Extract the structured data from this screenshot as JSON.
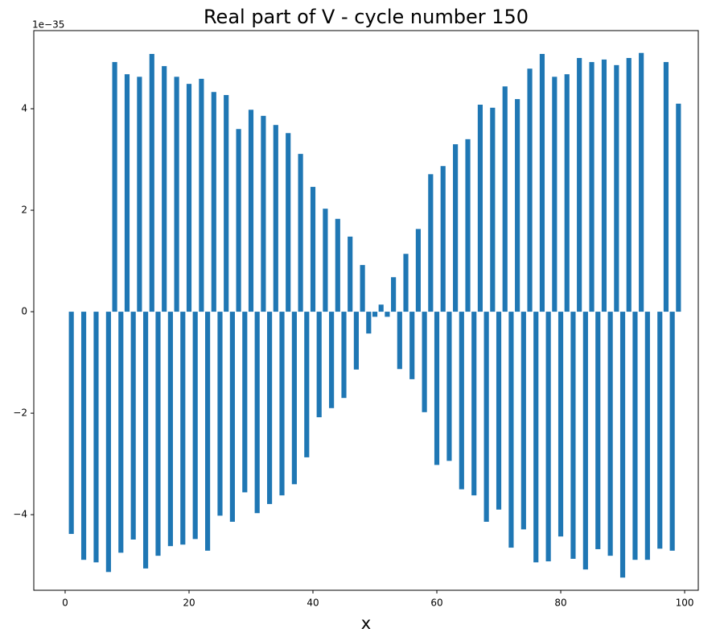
{
  "chart_data": {
    "type": "bar",
    "title": "Real part of V - cycle number 150",
    "x_label": "x",
    "offset_text": "1e−35",
    "color": "#1f77b4",
    "bar_width": 0.8,
    "x": [
      1,
      3,
      5,
      7,
      8,
      9,
      10,
      11,
      12,
      13,
      14,
      15,
      16,
      17,
      18,
      19,
      20,
      21,
      22,
      23,
      24,
      25,
      26,
      27,
      28,
      29,
      30,
      31,
      32,
      33,
      34,
      35,
      36,
      37,
      38,
      39,
      40,
      41,
      42,
      43,
      44,
      45,
      46,
      47,
      48,
      49,
      50,
      51,
      52,
      53,
      54,
      55,
      56,
      57,
      58,
      59,
      60,
      61,
      62,
      63,
      64,
      65,
      66,
      67,
      68,
      69,
      70,
      71,
      72,
      73,
      74,
      75,
      76,
      77,
      78,
      79,
      80,
      81,
      82,
      83,
      84,
      85,
      86,
      87,
      88,
      89,
      90,
      91,
      92,
      93,
      94,
      96,
      97,
      98,
      99
    ],
    "values": [
      -4.38,
      -4.89,
      -4.94,
      -5.13,
      4.92,
      -4.75,
      4.68,
      -4.49,
      4.63,
      -5.06,
      5.08,
      -4.81,
      4.84,
      -4.62,
      4.63,
      -4.59,
      4.49,
      -4.48,
      4.59,
      -4.71,
      4.33,
      -4.02,
      4.27,
      -4.14,
      3.6,
      -3.56,
      3.98,
      -3.97,
      3.86,
      -3.79,
      3.68,
      -3.62,
      3.52,
      -3.4,
      3.11,
      -2.87,
      2.46,
      -2.08,
      2.03,
      -1.9,
      1.83,
      -1.7,
      1.48,
      -1.14,
      0.92,
      -0.43,
      -0.1,
      0.14,
      -0.1,
      0.68,
      -1.13,
      1.14,
      -1.33,
      1.63,
      -1.98,
      2.71,
      -3.02,
      2.87,
      -2.94,
      3.3,
      -3.5,
      3.4,
      -3.62,
      4.08,
      -4.14,
      4.02,
      -3.9,
      4.44,
      -4.65,
      4.19,
      -4.29,
      4.79,
      -4.94,
      5.08,
      -4.92,
      4.63,
      -4.43,
      4.68,
      -4.87,
      5.0,
      -5.08,
      4.92,
      -4.68,
      4.97,
      -4.81,
      4.86,
      -5.24,
      5.0,
      -4.89,
      5.1,
      -4.89,
      -4.67,
      4.92,
      -4.71,
      4.1
    ],
    "xlim": [
      -5.06,
      102.2
    ],
    "xticks": [
      0,
      20,
      40,
      60,
      80,
      100
    ],
    "ylim": [
      -5.49,
      5.54
    ],
    "yticks": [
      {
        "value": -4,
        "label": "−4"
      },
      {
        "value": -2,
        "label": "−2"
      },
      0,
      2,
      4
    ]
  }
}
